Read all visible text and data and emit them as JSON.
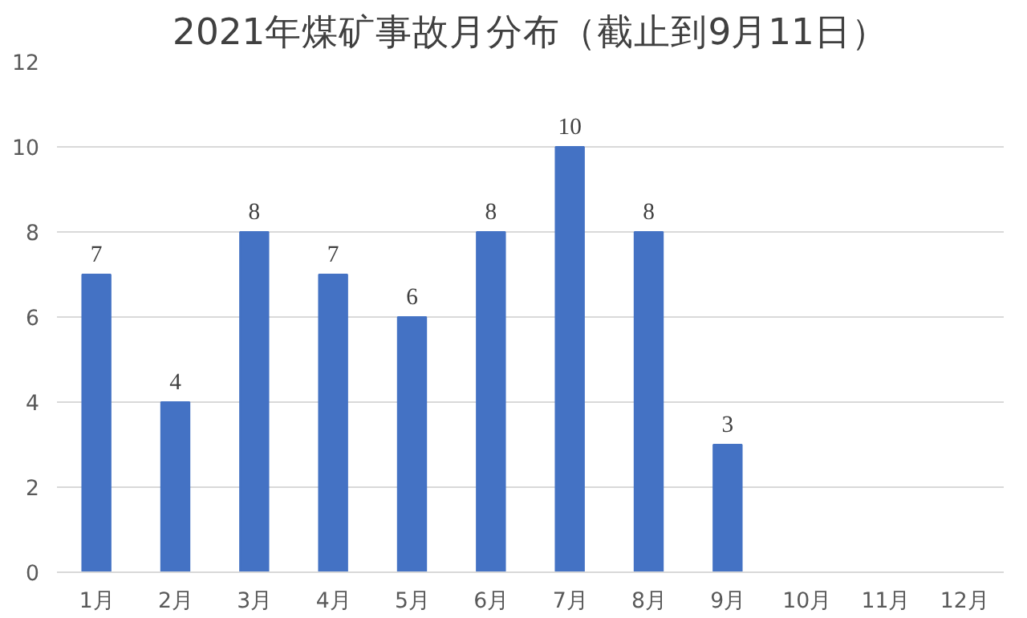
{
  "chart_data": {
    "type": "bar",
    "title": "2021年煤矿事故月分布（截止到9月11日）",
    "categories": [
      "1月",
      "2月",
      "3月",
      "4月",
      "5月",
      "6月",
      "7月",
      "8月",
      "9月",
      "10月",
      "11月",
      "12月"
    ],
    "values": [
      7,
      4,
      8,
      7,
      6,
      8,
      10,
      8,
      3,
      null,
      null,
      null
    ],
    "color": "#4472c4",
    "ylim": [
      0,
      12
    ],
    "yticks": [
      0,
      2,
      4,
      6,
      8,
      10,
      12
    ],
    "grid": "y",
    "data_labels": true
  }
}
